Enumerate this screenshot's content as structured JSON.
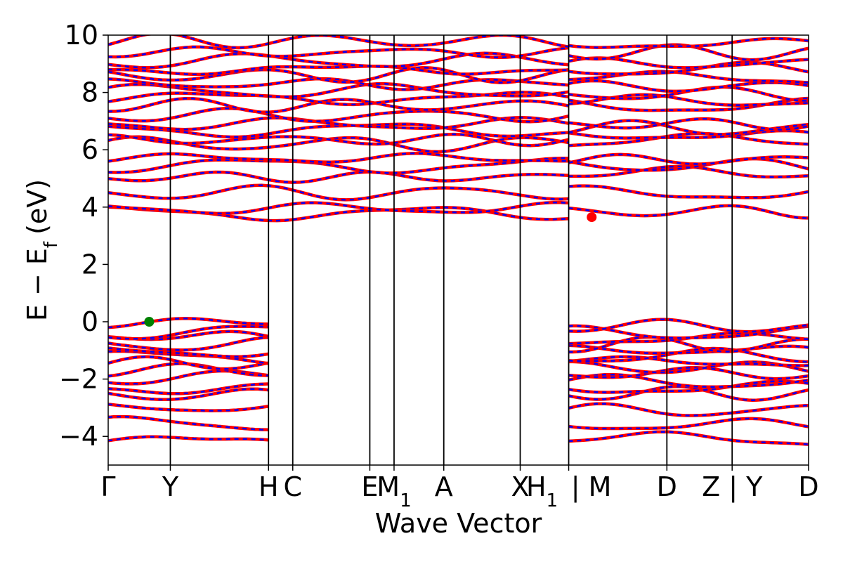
{
  "chart_data": {
    "type": "line",
    "xlabel": "Wave Vector",
    "ylabel": "E − E",
    "ylabel_subscript": "f",
    "ylabel_unit": "(eV)",
    "ylim": [
      -5,
      10
    ],
    "yticks": [
      {
        "value": -4,
        "label": "−4"
      },
      {
        "value": -2,
        "label": "−2"
      },
      {
        "value": 0,
        "label": "0"
      },
      {
        "value": 2,
        "label": "2"
      },
      {
        "value": 4,
        "label": "4"
      },
      {
        "value": 6,
        "label": "6"
      },
      {
        "value": 8,
        "label": "8"
      },
      {
        "value": 10,
        "label": "10"
      }
    ],
    "xlim": [
      0,
      11.27
    ],
    "kpoints": [
      {
        "x": 0.0,
        "label": "Γ",
        "sub": ""
      },
      {
        "x": 1.0,
        "label": "Y",
        "sub": ""
      },
      {
        "x": 2.58,
        "label": "H",
        "sub": ""
      },
      {
        "x": 2.97,
        "label": "C",
        "sub": ""
      },
      {
        "x": 4.21,
        "label": "E",
        "sub": ""
      },
      {
        "x": 4.6,
        "label": "M",
        "sub": "1"
      },
      {
        "x": 5.4,
        "label": "A",
        "sub": ""
      },
      {
        "x": 6.63,
        "label": "X",
        "sub": ""
      },
      {
        "x": 7.41,
        "label": "H",
        "sub": "1"
      },
      {
        "x": 7.41,
        "label": "| M",
        "sub": ""
      },
      {
        "x": 8.99,
        "label": "D",
        "sub": ""
      },
      {
        "x": 10.04,
        "label": "Z | Y",
        "sub": ""
      },
      {
        "x": 11.27,
        "label": "D",
        "sub": ""
      }
    ],
    "series": [
      {
        "color": "#ff0000",
        "style": "solid"
      },
      {
        "color": "#0000ff",
        "style": "dashed"
      }
    ],
    "valence_band_max": {
      "x": 0.66,
      "y": 0.0,
      "color": "#008000"
    },
    "conduction_band_min": {
      "x": 7.78,
      "y": 3.65,
      "color": "#ff0000"
    },
    "band_anchors": [
      {
        "segment": [
          0,
          2.58
        ],
        "levels": [
          -4.15,
          -3.55,
          -3.0,
          -2.55,
          -2.3,
          -1.95,
          -1.7,
          -1.45,
          -1.25,
          -1.05,
          -0.8,
          -0.5,
          -0.35,
          -0.05
        ]
      },
      {
        "segment": [
          0,
          7.41
        ],
        "levels": [
          3.78,
          3.95,
          4.5,
          5.05,
          5.45,
          5.7,
          6.2,
          6.35,
          6.7,
          6.9,
          7.2,
          7.55,
          7.8,
          8.05,
          8.3,
          8.6,
          8.8,
          9.1,
          9.4,
          9.8
        ]
      },
      {
        "segment": [
          7.41,
          11.27
        ],
        "levels": [
          -4.1,
          -3.6,
          -3.1,
          -2.5,
          -2.3,
          -2.1,
          -1.8,
          -1.6,
          -1.4,
          -1.2,
          -1.0,
          -0.8,
          -0.6,
          -0.4,
          -0.15,
          3.85,
          4.5,
          5.2,
          5.45,
          5.65,
          6.3,
          6.5,
          6.75,
          6.9,
          7.55,
          7.7,
          7.95,
          8.2,
          8.5,
          8.8,
          9.0,
          9.4,
          9.7
        ]
      }
    ]
  }
}
